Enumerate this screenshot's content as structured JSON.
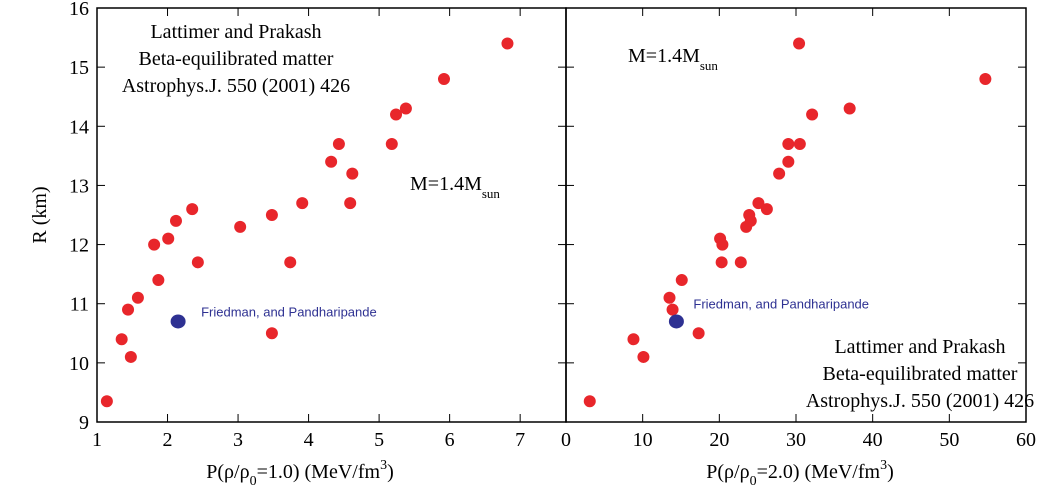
{
  "chart_data": [
    {
      "type": "scatter",
      "ylabel": "R (km)",
      "xlabel": [
        {
          "text": "P(ρ/ρ"
        },
        {
          "text": "0",
          "shift": "sub"
        },
        {
          "text": "=1.0)  (MeV/fm"
        },
        {
          "text": "3",
          "shift": "sup"
        },
        {
          "text": ")"
        }
      ],
      "xlim": [
        1,
        7.65
      ],
      "xticks": [
        1,
        2,
        3,
        4,
        5,
        6,
        7
      ],
      "ylim": [
        9,
        16
      ],
      "yticks": [
        9,
        10,
        11,
        12,
        13,
        14,
        15,
        16
      ],
      "annotations": [
        {
          "lines": [
            "Lattimer and Prakash",
            "Beta-equilibrated matter",
            "Astrophys.J. 550 (2001) 426"
          ]
        },
        {
          "text": "M=1.4M",
          "sub": "sun"
        }
      ],
      "series": [
        {
          "color": "#e8262b",
          "x": [
            1.14,
            1.35,
            1.48,
            1.44,
            1.58,
            1.81,
            1.87,
            2.01,
            2.12,
            2.35,
            2.43,
            3.03,
            3.48,
            3.48,
            3.74,
            3.91,
            4.59,
            4.32,
            4.43,
            4.62,
            5.18,
            5.24,
            5.38,
            5.92,
            6.82
          ],
          "values": [
            9.35,
            10.4,
            10.1,
            10.9,
            11.1,
            12.0,
            11.4,
            12.1,
            12.4,
            12.6,
            11.7,
            12.3,
            12.5,
            10.5,
            11.7,
            12.7,
            12.7,
            13.4,
            13.7,
            13.2,
            13.7,
            14.2,
            14.3,
            14.8,
            15.4
          ]
        },
        {
          "name": "Friedman, and Pandharipande",
          "color": "#2e3192",
          "x": [
            2.15
          ],
          "values": [
            10.7
          ]
        }
      ]
    },
    {
      "type": "scatter",
      "xlabel": [
        {
          "text": "P(ρ/ρ"
        },
        {
          "text": "0",
          "shift": "sub"
        },
        {
          "text": "=2.0)  (MeV/fm"
        },
        {
          "text": "3",
          "shift": "sup"
        },
        {
          "text": ")"
        }
      ],
      "xlim": [
        0,
        60
      ],
      "xticks": [
        0,
        10,
        20,
        30,
        40,
        50,
        60
      ],
      "ylim": [
        9,
        16
      ],
      "yticks": [
        9,
        10,
        11,
        12,
        13,
        14,
        15,
        16
      ],
      "annotations": [
        {
          "text": "M=1.4M",
          "sub": "sun"
        },
        {
          "lines": [
            "Lattimer and Prakash",
            "Beta-equilibrated matter",
            "Astrophys.J. 550 (2001) 426"
          ]
        }
      ],
      "series": [
        {
          "color": "#e8262b",
          "x": [
            3.1,
            8.8,
            10.1,
            13.5,
            13.9,
            15.1,
            17.3,
            20.1,
            20.4,
            20.3,
            22.8,
            23.5,
            23.9,
            24.1,
            25.1,
            26.2,
            27.8,
            29.0,
            29.0,
            30.5,
            32.1,
            37.0,
            30.4,
            54.7
          ],
          "values": [
            9.35,
            10.4,
            10.1,
            11.1,
            10.9,
            11.4,
            10.5,
            12.1,
            12.0,
            11.7,
            11.7,
            12.3,
            12.5,
            12.4,
            12.7,
            12.6,
            13.2,
            13.4,
            13.7,
            13.7,
            14.2,
            14.3,
            15.4,
            14.8
          ]
        },
        {
          "name": "Friedman, and Pandharipande",
          "color": "#2e3192",
          "x": [
            14.4
          ],
          "values": [
            10.7
          ]
        }
      ]
    }
  ]
}
